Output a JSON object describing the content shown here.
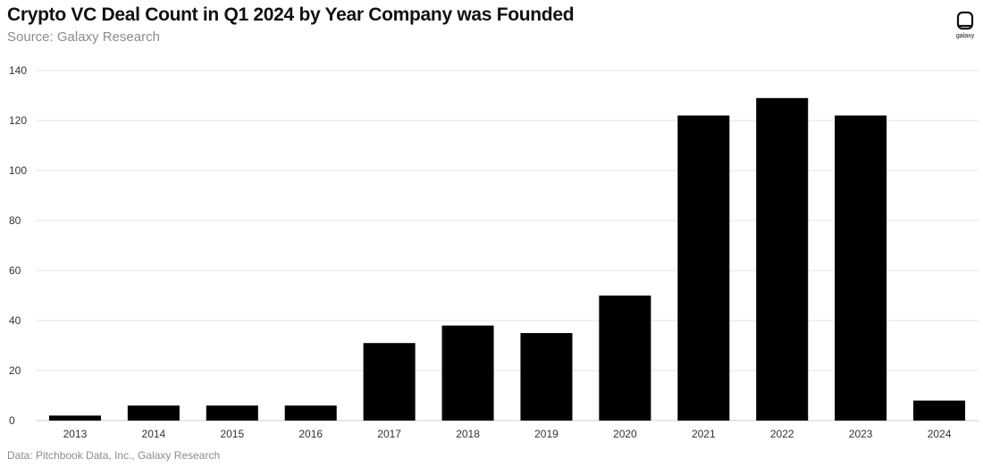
{
  "header": {
    "title": "Crypto VC Deal Count in Q1 2024 by Year Company was Founded",
    "subtitle": "Source: Galaxy Research"
  },
  "logo": {
    "icon": "galaxy-logo-icon",
    "text": "galaxy"
  },
  "footer": {
    "text": "Data: Pitchbook Data, Inc., Galaxy Research"
  },
  "colors": {
    "bar": "#000000",
    "grid": "#e6e6e6",
    "tick": "#333333"
  },
  "chart_data": {
    "type": "bar",
    "title": "Crypto VC Deal Count in Q1 2024 by Year Company was Founded",
    "subtitle": "Source: Galaxy Research",
    "xlabel": "",
    "ylabel": "",
    "categories": [
      "2013",
      "2014",
      "2015",
      "2016",
      "2017",
      "2018",
      "2019",
      "2020",
      "2021",
      "2022",
      "2023",
      "2024"
    ],
    "values": [
      2,
      6,
      6,
      6,
      31,
      38,
      35,
      50,
      122,
      129,
      122,
      8
    ],
    "ylim": [
      0,
      140
    ],
    "yticks": [
      0,
      20,
      40,
      60,
      80,
      100,
      120,
      140
    ],
    "grid": true,
    "legend": "none"
  }
}
